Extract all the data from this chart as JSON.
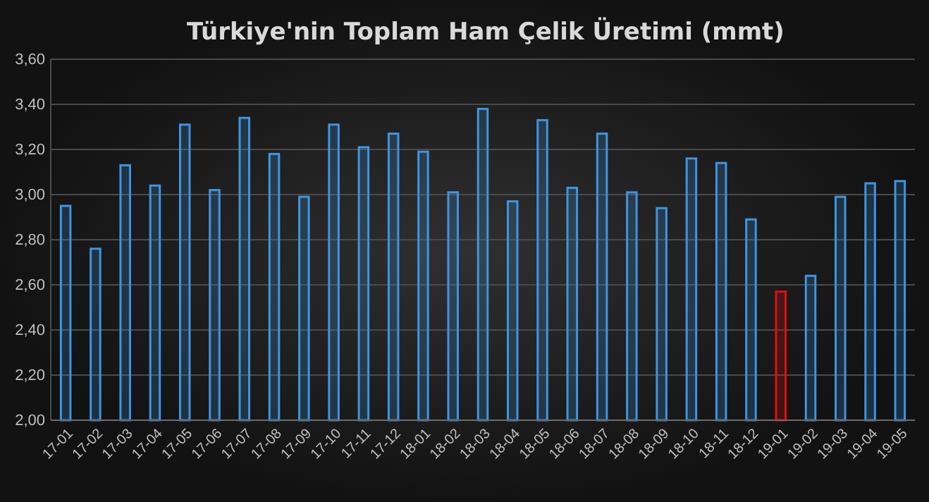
{
  "chart_data": {
    "type": "bar",
    "title": "Türkiye'nin Toplam Ham Çelik Üretimi (mmt)",
    "categories": [
      "17-01",
      "17-02",
      "17-03",
      "17-04",
      "17-05",
      "17-06",
      "17-07",
      "17-08",
      "17-09",
      "17-10",
      "17-11",
      "17-12",
      "18-01",
      "18-02",
      "18-03",
      "18-04",
      "18-05",
      "18-06",
      "18-07",
      "18-08",
      "18-09",
      "18-10",
      "18-11",
      "18-12",
      "19-01",
      "19-02",
      "19-03",
      "19-04",
      "19-05"
    ],
    "values": [
      2.95,
      2.76,
      3.13,
      3.04,
      3.31,
      3.02,
      3.34,
      3.18,
      2.99,
      3.31,
      3.21,
      3.27,
      3.19,
      3.01,
      3.38,
      2.97,
      3.33,
      3.03,
      3.27,
      3.01,
      2.94,
      3.16,
      3.14,
      2.89,
      2.57,
      2.64,
      2.99,
      3.05,
      3.06
    ],
    "colors": [
      "#3f95e0",
      "#3f95e0",
      "#3f95e0",
      "#3f95e0",
      "#3f95e0",
      "#3f95e0",
      "#3f95e0",
      "#3f95e0",
      "#3f95e0",
      "#3f95e0",
      "#3f95e0",
      "#3f95e0",
      "#3f95e0",
      "#3f95e0",
      "#3f95e0",
      "#3f95e0",
      "#3f95e0",
      "#3f95e0",
      "#3f95e0",
      "#3f95e0",
      "#3f95e0",
      "#3f95e0",
      "#3f95e0",
      "#3f95e0",
      "#e01010",
      "#3f95e0",
      "#3f95e0",
      "#3f95e0",
      "#3f95e0"
    ],
    "ylim": [
      2.0,
      3.6
    ],
    "yticks": [
      {
        "value": 2.0,
        "label": "2,00"
      },
      {
        "value": 2.2,
        "label": "2,20"
      },
      {
        "value": 2.4,
        "label": "2,40"
      },
      {
        "value": 2.6,
        "label": "2,60"
      },
      {
        "value": 2.8,
        "label": "2,80"
      },
      {
        "value": 3.0,
        "label": "3,00"
      },
      {
        "value": 3.2,
        "label": "3,20"
      },
      {
        "value": 3.4,
        "label": "3,40"
      },
      {
        "value": 3.6,
        "label": "3,60"
      }
    ],
    "grid": "y"
  }
}
